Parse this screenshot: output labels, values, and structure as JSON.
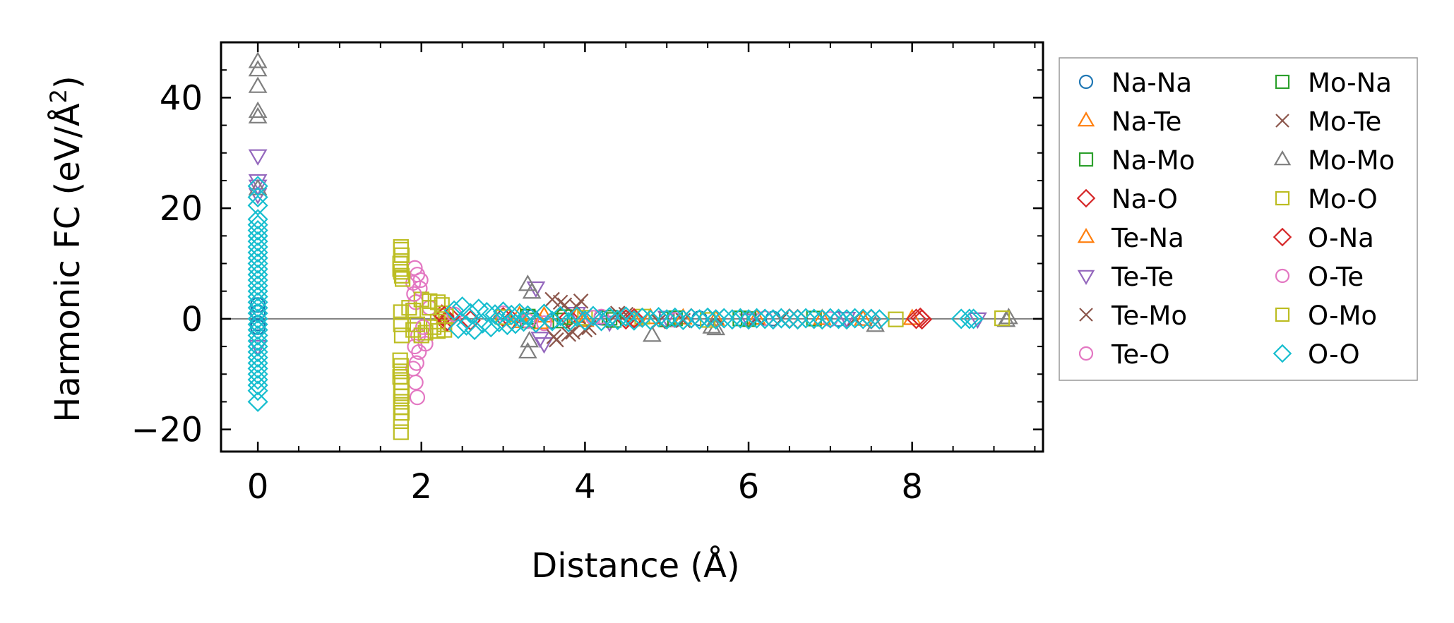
{
  "chart_data": {
    "type": "scatter",
    "title": "",
    "xlabel": "Distance (Å)",
    "ylabel": "Harmonic FC (eV/Å²)",
    "ylabel_main": "Harmonic FC (eV/Å",
    "ylabel_sup": "2",
    "ylabel_close": ")",
    "xlim": [
      -0.45,
      9.6
    ],
    "ylim": [
      -24,
      50
    ],
    "xticks": [
      0,
      2,
      4,
      6,
      8
    ],
    "yticks": [
      -20,
      0,
      20,
      40
    ],
    "xtick_labels": [
      "0",
      "2",
      "4",
      "6",
      "8"
    ],
    "ytick_labels": [
      "−20",
      "0",
      "20",
      "40"
    ],
    "grid": false,
    "zero_line": 0,
    "legend_position": "outside-right",
    "legend_columns": 2,
    "series": [
      {
        "name": "Na-Na",
        "marker": "circle",
        "color": "#1f77b4",
        "points": [
          [
            0,
            2.5
          ],
          [
            0,
            1.2
          ],
          [
            0,
            -0.8
          ],
          [
            0,
            -1.5
          ],
          [
            3.35,
            0.3
          ],
          [
            3.6,
            -0.4
          ],
          [
            4.2,
            0.2
          ],
          [
            5.4,
            0.1
          ],
          [
            6.3,
            0.05
          ],
          [
            7.1,
            -0.05
          ]
        ]
      },
      {
        "name": "Na-Te",
        "marker": "triangle-up",
        "color": "#ff7f0e",
        "points": [
          [
            3.2,
            0.6
          ],
          [
            3.45,
            -0.7
          ],
          [
            3.9,
            0.4
          ],
          [
            4.6,
            -0.2
          ],
          [
            5.2,
            0.15
          ],
          [
            6.1,
            0.1
          ],
          [
            7.4,
            -0.1
          ],
          [
            8.0,
            0.05
          ]
        ]
      },
      {
        "name": "Na-Mo",
        "marker": "square",
        "color": "#2ca02c",
        "points": [
          [
            3.3,
            0.4
          ],
          [
            3.7,
            -0.3
          ],
          [
            4.3,
            0.2
          ],
          [
            5.0,
            -0.1
          ],
          [
            5.9,
            0.08
          ],
          [
            6.8,
            0.05
          ]
        ]
      },
      {
        "name": "Na-O",
        "marker": "diamond",
        "color": "#d62728",
        "points": [
          [
            2.25,
            0.8
          ],
          [
            2.3,
            -0.6
          ],
          [
            2.35,
            0.4
          ],
          [
            2.6,
            -0.3
          ],
          [
            3.0,
            0.3
          ],
          [
            3.8,
            0.2
          ],
          [
            4.5,
            -0.1
          ],
          [
            5.3,
            0.1
          ],
          [
            6.5,
            0.05
          ],
          [
            7.5,
            -0.05
          ],
          [
            8.05,
            0.0
          ],
          [
            8.1,
            0.2
          ]
        ]
      },
      {
        "name": "Te-Na",
        "marker": "triangle-up",
        "color": "#ff7f0e",
        "points": [
          [
            3.22,
            -0.5
          ],
          [
            3.5,
            0.5
          ],
          [
            4.0,
            -0.3
          ],
          [
            4.8,
            0.2
          ],
          [
            5.6,
            -0.1
          ],
          [
            6.9,
            0.05
          ]
        ]
      },
      {
        "name": "Te-Te",
        "marker": "triangle-down",
        "color": "#9467bd",
        "points": [
          [
            0,
            29.5
          ],
          [
            0,
            25
          ],
          [
            0,
            24
          ],
          [
            0,
            22.5
          ],
          [
            0,
            -5
          ],
          [
            3.4,
            5.6
          ],
          [
            3.5,
            -4.5
          ],
          [
            3.45,
            -3.5
          ],
          [
            3.9,
            1.0
          ],
          [
            4.3,
            -0.6
          ],
          [
            5.0,
            0.3
          ],
          [
            6.0,
            -0.2
          ],
          [
            7.2,
            0.1
          ],
          [
            8.8,
            0.0
          ]
        ]
      },
      {
        "name": "Te-Mo",
        "marker": "x",
        "color": "#8c564b",
        "points": [
          [
            3.6,
            3.5
          ],
          [
            3.65,
            -3.8
          ],
          [
            3.75,
            2.5
          ],
          [
            3.8,
            -2.8
          ],
          [
            3.95,
            3.2
          ],
          [
            4.0,
            -2.0
          ],
          [
            4.4,
            1.0
          ],
          [
            4.9,
            -0.5
          ],
          [
            5.6,
            0.3
          ],
          [
            6.4,
            -0.1
          ],
          [
            7.3,
            0.05
          ]
        ]
      },
      {
        "name": "Te-O",
        "marker": "circle",
        "color": "#e377c2",
        "points": [
          [
            1.92,
            9.2
          ],
          [
            1.95,
            8.0
          ],
          [
            1.9,
            6.5
          ],
          [
            1.98,
            5.5
          ],
          [
            1.93,
            3.0
          ],
          [
            1.96,
            -3.0
          ],
          [
            1.92,
            -5.0
          ],
          [
            1.9,
            -9.0
          ],
          [
            1.93,
            -11.5
          ],
          [
            1.95,
            -14.2
          ],
          [
            2.05,
            -4.5
          ],
          [
            2.1,
            2.0
          ],
          [
            3.0,
            1.0
          ],
          [
            3.5,
            -0.8
          ],
          [
            4.2,
            0.4
          ],
          [
            5.1,
            -0.2
          ],
          [
            6.2,
            0.1
          ],
          [
            7.0,
            -0.05
          ]
        ]
      },
      {
        "name": "Mo-Na",
        "marker": "square",
        "color": "#2ca02c",
        "points": [
          [
            3.3,
            -0.3
          ],
          [
            3.75,
            0.3
          ],
          [
            4.35,
            -0.2
          ],
          [
            5.1,
            0.1
          ],
          [
            6.0,
            -0.05
          ]
        ]
      },
      {
        "name": "Mo-Te",
        "marker": "x",
        "color": "#8c564b",
        "points": [
          [
            3.62,
            -3.2
          ],
          [
            3.7,
            3.0
          ],
          [
            3.85,
            -2.4
          ],
          [
            3.9,
            2.2
          ],
          [
            4.05,
            -1.6
          ],
          [
            4.5,
            0.8
          ],
          [
            5.2,
            -0.3
          ],
          [
            6.1,
            0.15
          ]
        ]
      },
      {
        "name": "Mo-Mo",
        "marker": "triangle-up",
        "color": "#7f7f7f",
        "points": [
          [
            0,
            46.5
          ],
          [
            0,
            45
          ],
          [
            0,
            42
          ],
          [
            0,
            37.5
          ],
          [
            0,
            36.5
          ],
          [
            0,
            23.5
          ],
          [
            3.3,
            6.2
          ],
          [
            3.35,
            4.8
          ],
          [
            3.3,
            -6.0
          ],
          [
            3.32,
            -4.0
          ],
          [
            4.82,
            -3.0
          ],
          [
            5.55,
            -1.5
          ],
          [
            5.6,
            -1.8
          ],
          [
            7.55,
            -1.2
          ],
          [
            9.15,
            -0.3
          ],
          [
            9.18,
            0.2
          ]
        ]
      },
      {
        "name": "Mo-O",
        "marker": "square",
        "color": "#bcbd22",
        "points": [
          [
            1.75,
            13
          ],
          [
            1.76,
            11.5
          ],
          [
            1.74,
            10
          ],
          [
            1.75,
            8.5
          ],
          [
            1.77,
            7.2
          ],
          [
            1.75,
            1.2
          ],
          [
            1.75,
            -1.0
          ],
          [
            1.76,
            -3.0
          ],
          [
            1.74,
            -7.5
          ],
          [
            1.75,
            -9.5
          ],
          [
            1.76,
            -11.5
          ],
          [
            1.75,
            -13
          ],
          [
            1.75,
            -15
          ],
          [
            1.76,
            -17
          ],
          [
            1.75,
            -18.5
          ],
          [
            1.75,
            -20.5
          ],
          [
            1.85,
            2.0
          ],
          [
            1.9,
            -2.0
          ],
          [
            2.0,
            3.5
          ],
          [
            2.05,
            -2.5
          ],
          [
            2.1,
            2.0
          ],
          [
            2.15,
            -1.5
          ],
          [
            2.2,
            3.0
          ],
          [
            2.25,
            1.0
          ],
          [
            2.28,
            -1.0
          ],
          [
            2.2,
            -2.2
          ],
          [
            2.3,
            0.5
          ],
          [
            3.0,
            0.3
          ],
          [
            4.0,
            0.2
          ],
          [
            4.7,
            0.4
          ],
          [
            5.5,
            -0.2
          ],
          [
            7.8,
            -0.1
          ],
          [
            9.1,
            0.1
          ]
        ]
      },
      {
        "name": "O-Na",
        "marker": "diamond",
        "color": "#d62728",
        "points": [
          [
            2.28,
            0.5
          ],
          [
            2.32,
            -0.4
          ],
          [
            3.1,
            -0.2
          ],
          [
            4.6,
            0.1
          ],
          [
            6.6,
            -0.05
          ],
          [
            8.12,
            -0.1
          ]
        ]
      },
      {
        "name": "O-Te",
        "marker": "circle",
        "color": "#e377c2",
        "points": [
          [
            1.94,
            -8.0
          ],
          [
            1.97,
            -6.0
          ],
          [
            1.91,
            4.5
          ],
          [
            1.99,
            7.0
          ],
          [
            2.02,
            -1.5
          ],
          [
            2.4,
            0.8
          ],
          [
            3.3,
            -0.4
          ],
          [
            4.1,
            0.2
          ]
        ]
      },
      {
        "name": "O-Mo",
        "marker": "square",
        "color": "#bcbd22",
        "points": [
          [
            1.75,
            12.5
          ],
          [
            1.74,
            9.0
          ],
          [
            1.76,
            7.8
          ],
          [
            1.75,
            -8.5
          ],
          [
            1.74,
            -10.5
          ],
          [
            1.76,
            -14
          ],
          [
            1.75,
            -16
          ],
          [
            1.9,
            1.5
          ],
          [
            1.95,
            -1.0
          ],
          [
            2.0,
            -3.0
          ],
          [
            2.1,
            3.2
          ],
          [
            2.2,
            -0.5
          ],
          [
            2.25,
            2.5
          ],
          [
            2.28,
            -2.0
          ]
        ]
      },
      {
        "name": "O-O",
        "marker": "diamond",
        "color": "#17becf",
        "points": [
          [
            0,
            24
          ],
          [
            0,
            22
          ],
          [
            0,
            20.5
          ],
          [
            0,
            18
          ],
          [
            0,
            17
          ],
          [
            0,
            16
          ],
          [
            0,
            15
          ],
          [
            0,
            14
          ],
          [
            0,
            13
          ],
          [
            0,
            12
          ],
          [
            0,
            11
          ],
          [
            0,
            10
          ],
          [
            0,
            9
          ],
          [
            0,
            8
          ],
          [
            0,
            7
          ],
          [
            0,
            6
          ],
          [
            0,
            5
          ],
          [
            0,
            4
          ],
          [
            0,
            3
          ],
          [
            0,
            2
          ],
          [
            0,
            1
          ],
          [
            0,
            0
          ],
          [
            0,
            -1
          ],
          [
            0,
            -2
          ],
          [
            0,
            -3
          ],
          [
            0,
            -4
          ],
          [
            0,
            -5
          ],
          [
            0,
            -6
          ],
          [
            0,
            -7
          ],
          [
            0,
            -8
          ],
          [
            0,
            -9
          ],
          [
            0,
            -10
          ],
          [
            0,
            -11
          ],
          [
            0,
            -12
          ],
          [
            0,
            -13
          ],
          [
            0,
            -15
          ],
          [
            2.4,
            1.5
          ],
          [
            2.45,
            -1.8
          ],
          [
            2.5,
            2.2
          ],
          [
            2.55,
            -1.2
          ],
          [
            2.6,
            1.0
          ],
          [
            2.65,
            -2.0
          ],
          [
            2.7,
            1.8
          ],
          [
            2.75,
            -0.8
          ],
          [
            2.8,
            1.2
          ],
          [
            2.85,
            -1.5
          ],
          [
            2.9,
            0.8
          ],
          [
            2.95,
            -0.6
          ],
          [
            3.0,
            1.3
          ],
          [
            3.05,
            -1.1
          ],
          [
            3.1,
            0.7
          ],
          [
            3.15,
            -0.9
          ],
          [
            3.2,
            1.0
          ],
          [
            3.25,
            -0.5
          ],
          [
            3.3,
            0.6
          ],
          [
            3.4,
            -0.7
          ],
          [
            3.5,
            0.9
          ],
          [
            3.6,
            -0.4
          ],
          [
            3.7,
            0.5
          ],
          [
            3.8,
            -0.6
          ],
          [
            3.9,
            0.4
          ],
          [
            4.0,
            -0.3
          ],
          [
            4.1,
            0.5
          ],
          [
            4.2,
            -0.4
          ],
          [
            4.3,
            0.3
          ],
          [
            4.4,
            -0.2
          ],
          [
            4.5,
            0.4
          ],
          [
            4.6,
            -0.3
          ],
          [
            4.7,
            0.2
          ],
          [
            4.8,
            -0.2
          ],
          [
            4.9,
            0.3
          ],
          [
            5.0,
            -0.1
          ],
          [
            5.1,
            0.2
          ],
          [
            5.2,
            -0.2
          ],
          [
            5.3,
            0.1
          ],
          [
            5.4,
            -0.1
          ],
          [
            5.5,
            0.2
          ],
          [
            5.6,
            -0.1
          ],
          [
            5.7,
            0.1
          ],
          [
            5.8,
            -0.1
          ],
          [
            5.9,
            0.1
          ],
          [
            6.0,
            -0.1
          ],
          [
            6.1,
            0.1
          ],
          [
            6.2,
            0.0
          ],
          [
            6.3,
            -0.1
          ],
          [
            6.4,
            0.1
          ],
          [
            6.5,
            0.0
          ],
          [
            6.6,
            -0.1
          ],
          [
            6.7,
            0.1
          ],
          [
            6.8,
            0.0
          ],
          [
            6.9,
            -0.1
          ],
          [
            7.0,
            0.1
          ],
          [
            7.1,
            0.0
          ],
          [
            7.2,
            -0.1
          ],
          [
            7.3,
            0.1
          ],
          [
            7.4,
            0.0
          ],
          [
            7.5,
            0.0
          ],
          [
            7.6,
            -0.1
          ],
          [
            8.6,
            0.0
          ],
          [
            8.7,
            0.0
          ],
          [
            8.75,
            0.0
          ]
        ]
      }
    ]
  }
}
